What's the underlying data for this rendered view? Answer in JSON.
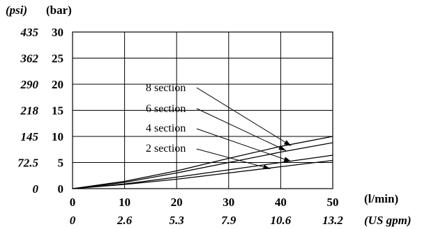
{
  "chart_data": {
    "type": "line",
    "x_axis_primary": {
      "label": "(l/min)",
      "ticks": [
        "0",
        "10",
        "20",
        "30",
        "40",
        "50"
      ],
      "range": [
        0,
        50
      ]
    },
    "x_axis_secondary": {
      "label": "(US gpm)",
      "ticks": [
        "0",
        "2.6",
        "5.3",
        "7.9",
        "10.6",
        "13.2"
      ]
    },
    "y_axis_primary": {
      "label": "(bar)",
      "ticks": [
        "0",
        "5",
        "10",
        "15",
        "20",
        "25",
        "30"
      ],
      "range": [
        0,
        30
      ]
    },
    "y_axis_secondary": {
      "label": "(psi)",
      "ticks": [
        "0",
        "72.5",
        "145",
        "218",
        "290",
        "362",
        "435"
      ]
    },
    "grid": true,
    "series": [
      {
        "name": "8 section",
        "x": [
          0,
          10,
          20,
          30,
          40,
          50
        ],
        "y": [
          0,
          1.4,
          3.4,
          5.8,
          8.1,
          10.0
        ]
      },
      {
        "name": "6 section",
        "x": [
          0,
          10,
          20,
          30,
          40,
          50
        ],
        "y": [
          0,
          1.2,
          3.0,
          5.0,
          7.0,
          8.8
        ]
      },
      {
        "name": "4 section",
        "x": [
          0,
          10,
          20,
          30,
          40,
          50
        ],
        "y": [
          0,
          0.9,
          2.2,
          3.6,
          5.0,
          6.4
        ]
      },
      {
        "name": "2 section",
        "x": [
          0,
          10,
          20,
          30,
          40,
          50
        ],
        "y": [
          0,
          0.8,
          1.8,
          3.0,
          4.2,
          5.4
        ]
      }
    ],
    "annotations": [
      {
        "series": "8 section",
        "text": "8 section",
        "x": 42,
        "y": 8.2
      },
      {
        "series": "6 section",
        "text": "6 section",
        "x": 41,
        "y": 7.3
      },
      {
        "series": "4 section",
        "text": "4 section",
        "x": 42,
        "y": 5.2
      },
      {
        "series": "2 section",
        "text": "2 section",
        "x": 38,
        "y": 3.8
      }
    ]
  }
}
